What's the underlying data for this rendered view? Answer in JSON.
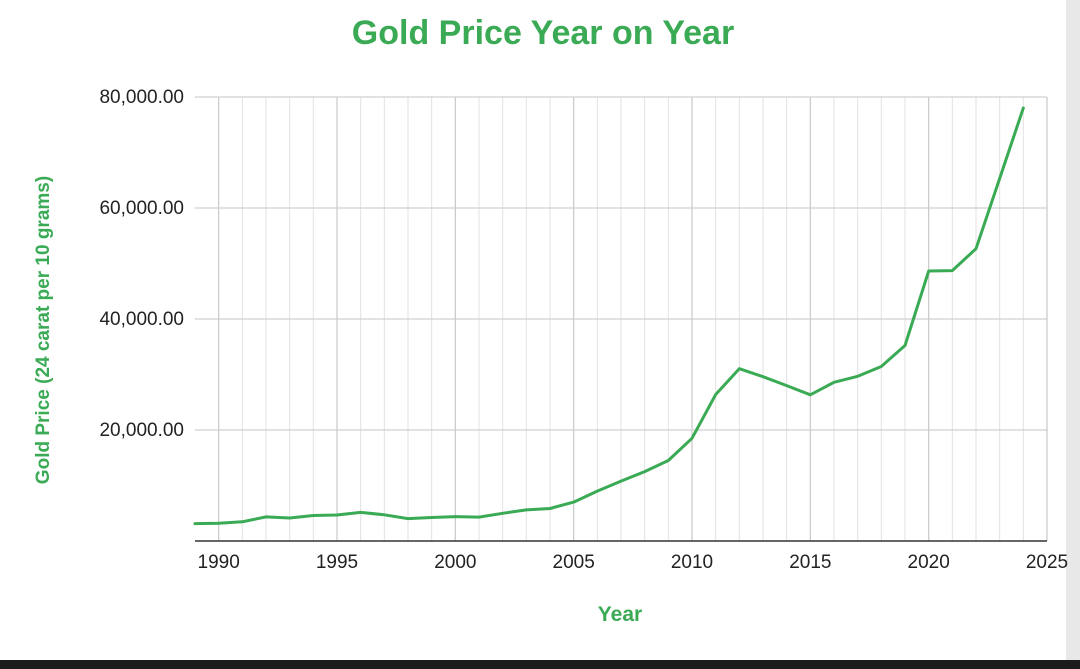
{
  "chart_data": {
    "type": "line",
    "title": "Gold Price Year on Year",
    "xlabel": "Year",
    "ylabel": "Gold Price (24 carat per 10 grams)",
    "xlim": [
      1989,
      2025
    ],
    "ylim": [
      0,
      80000
    ],
    "x_ticks": [
      1990,
      1995,
      2000,
      2005,
      2010,
      2015,
      2020,
      2025
    ],
    "y_ticks": [
      20000,
      40000,
      60000,
      80000
    ],
    "y_tick_labels": [
      "20,000.00",
      "40,000.00",
      "60,000.00",
      "80,000.00"
    ],
    "x_minor_step": 1,
    "grid": true,
    "color": "#3aaa55",
    "series": [
      {
        "x": [
          1989,
          1990,
          1991,
          1992,
          1993,
          1994,
          1995,
          1996,
          1997,
          1998,
          1999,
          2000,
          2001,
          2002,
          2003,
          2004,
          2005,
          2006,
          2007,
          2008,
          2009,
          2010,
          2011,
          2012,
          2013,
          2014,
          2015,
          2016,
          2017,
          2018,
          2019,
          2020,
          2021,
          2022,
          2023,
          2024
        ],
        "y": [
          3140,
          3200,
          3466,
          4334,
          4140,
          4598,
          4680,
          5160,
          4725,
          4045,
          4234,
          4400,
          4300,
          4990,
          5600,
          5850,
          7000,
          8990,
          10800,
          12500,
          14500,
          18500,
          26400,
          31050,
          29600,
          28000,
          26343,
          28600,
          29667,
          31438,
          35220,
          48651,
          48720,
          52670,
          65330,
          78000
        ]
      }
    ]
  }
}
